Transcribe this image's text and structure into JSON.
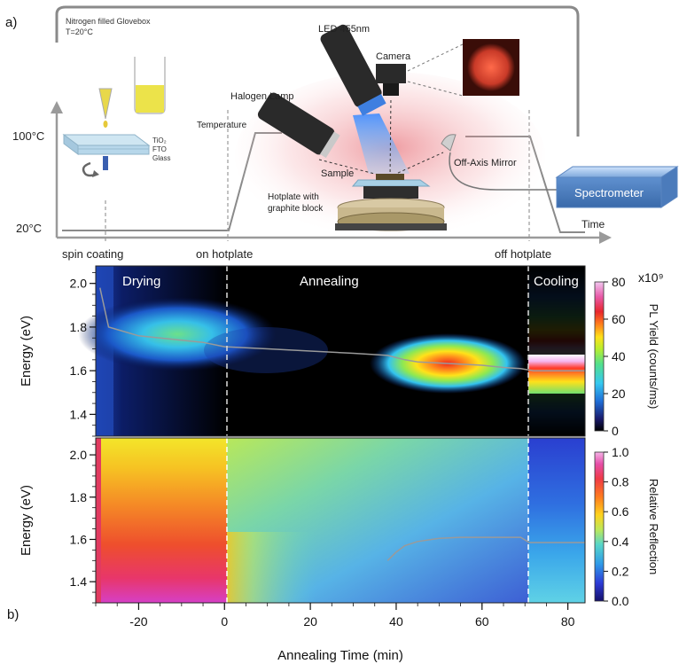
{
  "panel_a": {
    "label": "a)",
    "glovebox_line1": "Nitrogen filled Glovebox",
    "glovebox_line2": "T=20°C",
    "y_high": "100°C",
    "y_low": "20°C",
    "time_label": "Time",
    "temperature_label": "Temperature",
    "stage_labels": [
      "spin coating",
      "on hotplate",
      "off hotplate"
    ],
    "layer_labels": [
      "TiO₂",
      "FTO",
      "Glass"
    ],
    "led": "LED 455nm",
    "halogen": "Halogen Lamp",
    "camera": "Camera",
    "sample": "Sample",
    "off_axis_mirror": "Off-Axis Mirror",
    "hotplate_line1": "Hotplate with",
    "hotplate_line2": "graphite block",
    "spectrometer": "Spectrometer"
  },
  "panel_b": {
    "label": "b)",
    "x_axis_label": "Annealing Time (min)",
    "x_ticks": [
      "-20",
      "0",
      "20",
      "40",
      "60",
      "80"
    ],
    "y_axis_label": "Energy (eV)",
    "y_ticks": [
      "1.4",
      "1.6",
      "1.8",
      "2.0"
    ],
    "phases": [
      "Drying",
      "Annealing",
      "Cooling"
    ],
    "top_colorbar_title": "PL Yield (counts/ms)",
    "top_colorbar_ticks": [
      "0",
      "20",
      "40",
      "60",
      "80"
    ],
    "top_colorbar_multiplier": "x10⁹",
    "bottom_colorbar_title": "Relative Reflection",
    "bottom_colorbar_ticks": [
      "0.0",
      "0.2",
      "0.4",
      "0.6",
      "0.8",
      "1.0"
    ]
  },
  "chart_data": [
    {
      "type": "heatmap",
      "title": "",
      "xlabel": "Annealing Time (min)",
      "ylabel": "Energy (eV)",
      "zlabel": "PL Yield (counts/ms)",
      "zunit_multiplier": "x10⁹",
      "xlim": [
        -30,
        84
      ],
      "ylim": [
        1.3,
        2.08
      ],
      "zlim": [
        0,
        80
      ],
      "phase_boundaries_min": [
        0,
        70
      ],
      "peak_energy_trace": {
        "x": [
          -29,
          -27,
          -20,
          -10,
          -5,
          0,
          10,
          20,
          30,
          38,
          42,
          45,
          50,
          55,
          60,
          65,
          69,
          72,
          76,
          80,
          84
        ],
        "y": [
          1.98,
          1.8,
          1.76,
          1.74,
          1.73,
          1.71,
          1.7,
          1.69,
          1.68,
          1.67,
          1.65,
          1.64,
          1.635,
          1.63,
          1.625,
          1.615,
          1.61,
          1.6,
          1.6,
          1.6,
          1.6
        ]
      }
    },
    {
      "type": "heatmap",
      "title": "",
      "xlabel": "Annealing Time (min)",
      "ylabel": "Energy (eV)",
      "zlabel": "Relative Reflection",
      "xlim": [
        -30,
        84
      ],
      "ylim": [
        1.3,
        2.08
      ],
      "zlim": [
        0.0,
        1.0
      ],
      "phase_boundaries_min": [
        0,
        70
      ],
      "absorption_edge_trace": {
        "x": [
          38,
          40,
          42,
          45,
          50,
          55,
          60,
          65,
          69,
          71,
          75,
          80,
          84
        ],
        "y": [
          1.5,
          1.54,
          1.57,
          1.59,
          1.605,
          1.61,
          1.61,
          1.61,
          1.61,
          1.585,
          1.585,
          1.585,
          1.585
        ]
      }
    }
  ]
}
